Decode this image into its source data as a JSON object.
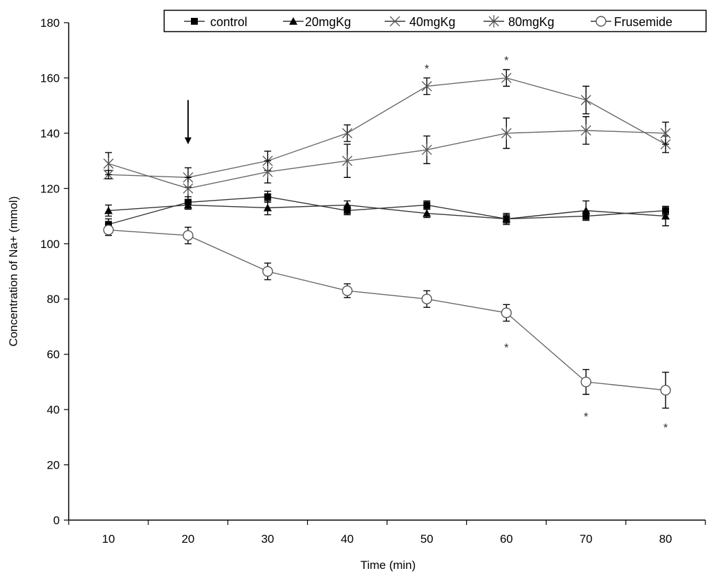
{
  "chart_data": {
    "type": "line",
    "xlabel": "Time (min)",
    "ylabel": "Concentration of Na+ (mmol)",
    "x": [
      10,
      20,
      30,
      40,
      50,
      60,
      70,
      80
    ],
    "ylim": [
      0,
      180
    ],
    "yticks": [
      0,
      20,
      40,
      60,
      80,
      100,
      120,
      140,
      160,
      180
    ],
    "grid": false,
    "legend_position": "top",
    "series": [
      {
        "name": "control",
        "marker": "square",
        "color": "#000000",
        "values": [
          107,
          115,
          117,
          112,
          114,
          109,
          110,
          112
        ],
        "errors": [
          2,
          2,
          2,
          1.5,
          1.5,
          2,
          1.5,
          1.5
        ]
      },
      {
        "name": "20mgKg",
        "marker": "triangle",
        "color": "#000000",
        "values": [
          112,
          114,
          113,
          114,
          111,
          109,
          112,
          110
        ],
        "errors": [
          2,
          1.5,
          2.5,
          1.5,
          1.5,
          1.5,
          3.5,
          3.5
        ]
      },
      {
        "name": "40mgKg",
        "marker": "x",
        "color": "#555555",
        "values": [
          125,
          124,
          130,
          140,
          157,
          160,
          152,
          136
        ],
        "errors": [
          1.5,
          3.5,
          3.5,
          3,
          3,
          3,
          5,
          3
        ]
      },
      {
        "name": "80mgKg",
        "marker": "asterisk",
        "color": "#555555",
        "values": [
          129,
          120,
          126,
          130,
          134,
          140,
          141,
          140
        ],
        "errors": [
          4,
          4,
          4,
          6,
          5,
          5.5,
          5,
          4
        ]
      },
      {
        "name": "Frusemide",
        "marker": "circle",
        "color": "#555555",
        "values": [
          105,
          103,
          90,
          83,
          80,
          75,
          50,
          47
        ],
        "errors": [
          2,
          3,
          3,
          2.5,
          3,
          3,
          4.5,
          6.5
        ]
      }
    ],
    "annotations": [
      {
        "text": "*",
        "x": 50,
        "y": 165
      },
      {
        "text": "*",
        "x": 60,
        "y": 168
      },
      {
        "text": "*",
        "x": 60,
        "y": 64
      },
      {
        "text": "*",
        "x": 70,
        "y": 39
      },
      {
        "text": "*",
        "x": 80,
        "y": 35
      }
    ],
    "arrow": {
      "x": 20,
      "y_from": 152,
      "y_to": 136
    }
  }
}
